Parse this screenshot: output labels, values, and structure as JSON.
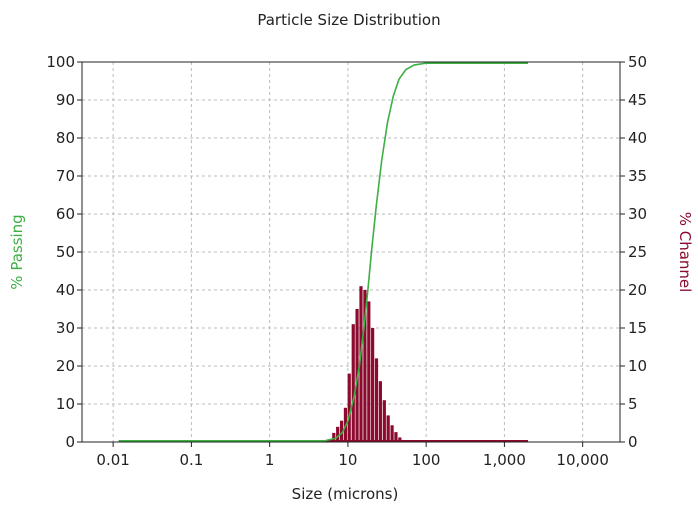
{
  "chart_data": {
    "type": "bar",
    "title": "Particle Size Distribution",
    "xlabel": "Size (microns)",
    "ylabel_left": "% Passing",
    "ylabel_right": "% Channel",
    "x_scale": "log",
    "xlim": [
      0.004,
      30000
    ],
    "ylim_left": [
      0,
      100
    ],
    "ylim_right": [
      0,
      50
    ],
    "x_tick_labels": [
      "0.01",
      "0.1",
      "1",
      "10",
      "100",
      "1,000",
      "10,000"
    ],
    "y_left_tick_labels": [
      "0",
      "10",
      "20",
      "30",
      "40",
      "50",
      "60",
      "70",
      "80",
      "90",
      "100"
    ],
    "y_right_tick_labels": [
      "0",
      "5",
      "10",
      "15",
      "20",
      "25",
      "30",
      "35",
      "40",
      "45",
      "50"
    ],
    "grid": true,
    "colors": {
      "passing": "#3cb043",
      "channel": "#8b0a2e"
    },
    "series": [
      {
        "axis": "right",
        "type": "bar",
        "x": [
          5.9,
          6.6,
          7.4,
          8.3,
          9.3,
          10.4,
          11.7,
          13.1,
          14.7,
          16.5,
          18.5,
          20.7,
          23.2,
          26.0,
          29.2,
          32.7,
          36.7,
          41.1,
          46.1,
          51.7
        ],
        "y": [
          0.3,
          1.2,
          2.0,
          2.8,
          4.5,
          9.0,
          15.5,
          17.5,
          20.5,
          20.0,
          18.5,
          15.0,
          11.0,
          8.0,
          5.5,
          3.5,
          2.2,
          1.3,
          0.6,
          0.2
        ]
      },
      {
        "axis": "left",
        "type": "line",
        "x": [
          0.0118,
          5.0,
          7.0,
          8.5,
          10.0,
          12.0,
          14.0,
          16.0,
          18.0,
          20.0,
          23.0,
          27.0,
          32.0,
          38.0,
          45.0,
          55.0,
          70.0,
          100.0,
          2000.0
        ],
        "y": [
          0.3,
          0.3,
          1.0,
          2.5,
          5.5,
          12.0,
          20.0,
          30.0,
          40.0,
          50.0,
          62.0,
          74.0,
          84.0,
          91.0,
          95.5,
          98.0,
          99.2,
          99.7,
          99.7
        ]
      }
    ]
  }
}
